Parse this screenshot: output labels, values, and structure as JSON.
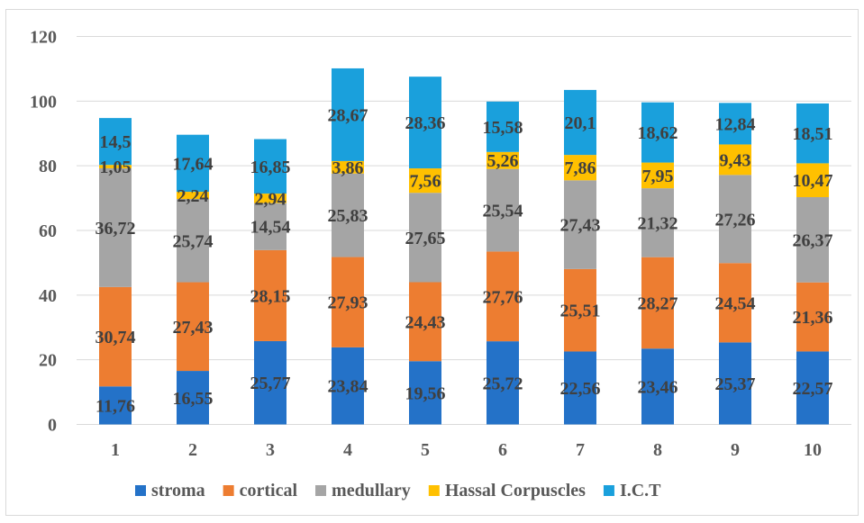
{
  "chart_data": {
    "type": "bar",
    "stacked": true,
    "categories": [
      "1",
      "2",
      "3",
      "4",
      "5",
      "6",
      "7",
      "8",
      "9",
      "10"
    ],
    "series": [
      {
        "name": "stroma",
        "color": "#2472c8",
        "values": [
          11.76,
          16.55,
          25.77,
          23.84,
          19.56,
          25.72,
          22.56,
          23.46,
          25.37,
          22.57
        ],
        "labels": [
          "11,76",
          "16,55",
          "25,77",
          "23,84",
          "19,56",
          "25,72",
          "22,56",
          "23,46",
          "25,37",
          "22,57"
        ]
      },
      {
        "name": "cortical",
        "color": "#ed7d31",
        "values": [
          30.74,
          27.43,
          28.15,
          27.93,
          24.43,
          27.76,
          25.51,
          28.27,
          24.54,
          21.36
        ],
        "labels": [
          "30,74",
          "27,43",
          "28,15",
          "27,93",
          "24,43",
          "27,76",
          "25,51",
          "28,27",
          "24,54",
          "21,36"
        ]
      },
      {
        "name": "medullary",
        "color": "#a5a5a5",
        "values": [
          36.72,
          25.74,
          14.54,
          25.83,
          27.65,
          25.54,
          27.43,
          21.32,
          27.26,
          26.37
        ],
        "labels": [
          "36,72",
          "25,74",
          "14,54",
          "25,83",
          "27,65",
          "25,54",
          "27,43",
          "21,32",
          "27,26",
          "26,37"
        ]
      },
      {
        "name": "Hassal Corpuscles",
        "color": "#ffc000",
        "values": [
          1.05,
          2.24,
          2.94,
          3.86,
          7.56,
          5.26,
          7.86,
          7.95,
          9.43,
          10.47
        ],
        "labels": [
          "1,05",
          "2,24",
          "2,94",
          "3,86",
          "7,56",
          "5,26",
          "7,86",
          "7,95",
          "9,43",
          "10,47"
        ]
      },
      {
        "name": "I.C.T",
        "color": "#1aa0dc",
        "values": [
          14.5,
          17.64,
          16.85,
          28.67,
          28.36,
          15.58,
          20.1,
          18.62,
          12.84,
          18.51
        ],
        "labels": [
          "14,5",
          "17,64",
          "16,85",
          "28,67",
          "28,36",
          "15,58",
          "20,1",
          "18,62",
          "12,84",
          "18,51"
        ]
      }
    ],
    "ylim": [
      0,
      120
    ],
    "yticks": [
      "0",
      "20",
      "40",
      "60",
      "80",
      "100",
      "120"
    ],
    "grid": true,
    "legend": "bottom"
  }
}
